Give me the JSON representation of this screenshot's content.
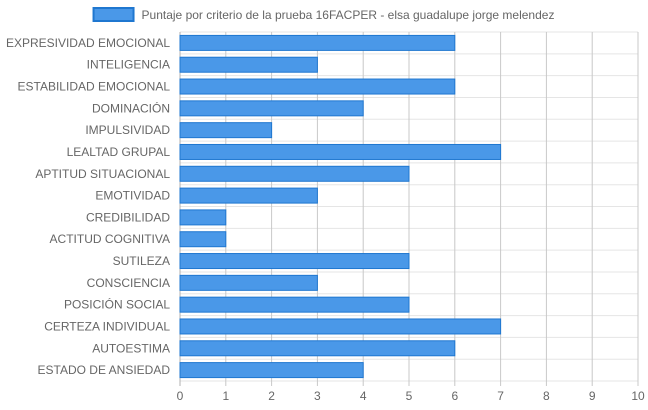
{
  "chart_data": {
    "type": "bar",
    "orientation": "horizontal",
    "categories": [
      "EXPRESIVIDAD EMOCIONAL",
      "INTELIGENCIA",
      "ESTABILIDAD EMOCIONAL",
      "DOMINACIÓN",
      "IMPULSIVIDAD",
      "LEALTAD GRUPAL",
      "APTITUD SITUACIONAL",
      "EMOTIVIDAD",
      "CREDIBILIDAD",
      "ACTITUD COGNITIVA",
      "SUTILEZA",
      "CONSCIENCIA",
      "POSICIÓN SOCIAL",
      "CERTEZA INDIVIDUAL",
      "AUTOESTIMA",
      "ESTADO DE ANSIEDAD"
    ],
    "series": [
      {
        "name": "Puntaje por criterio de la prueba 16FACPER - elsa guadalupe jorge melendez",
        "values": [
          6,
          3,
          6,
          4,
          2,
          7,
          5,
          3,
          1,
          1,
          5,
          3,
          5,
          7,
          6,
          4
        ],
        "color": "#4a98e8",
        "border_color": "#1f77d0"
      }
    ],
    "xlim": [
      0,
      10
    ],
    "xticks": [
      0,
      1,
      2,
      3,
      4,
      5,
      6,
      7,
      8,
      9,
      10
    ],
    "grid": true,
    "legend_position": "top"
  }
}
